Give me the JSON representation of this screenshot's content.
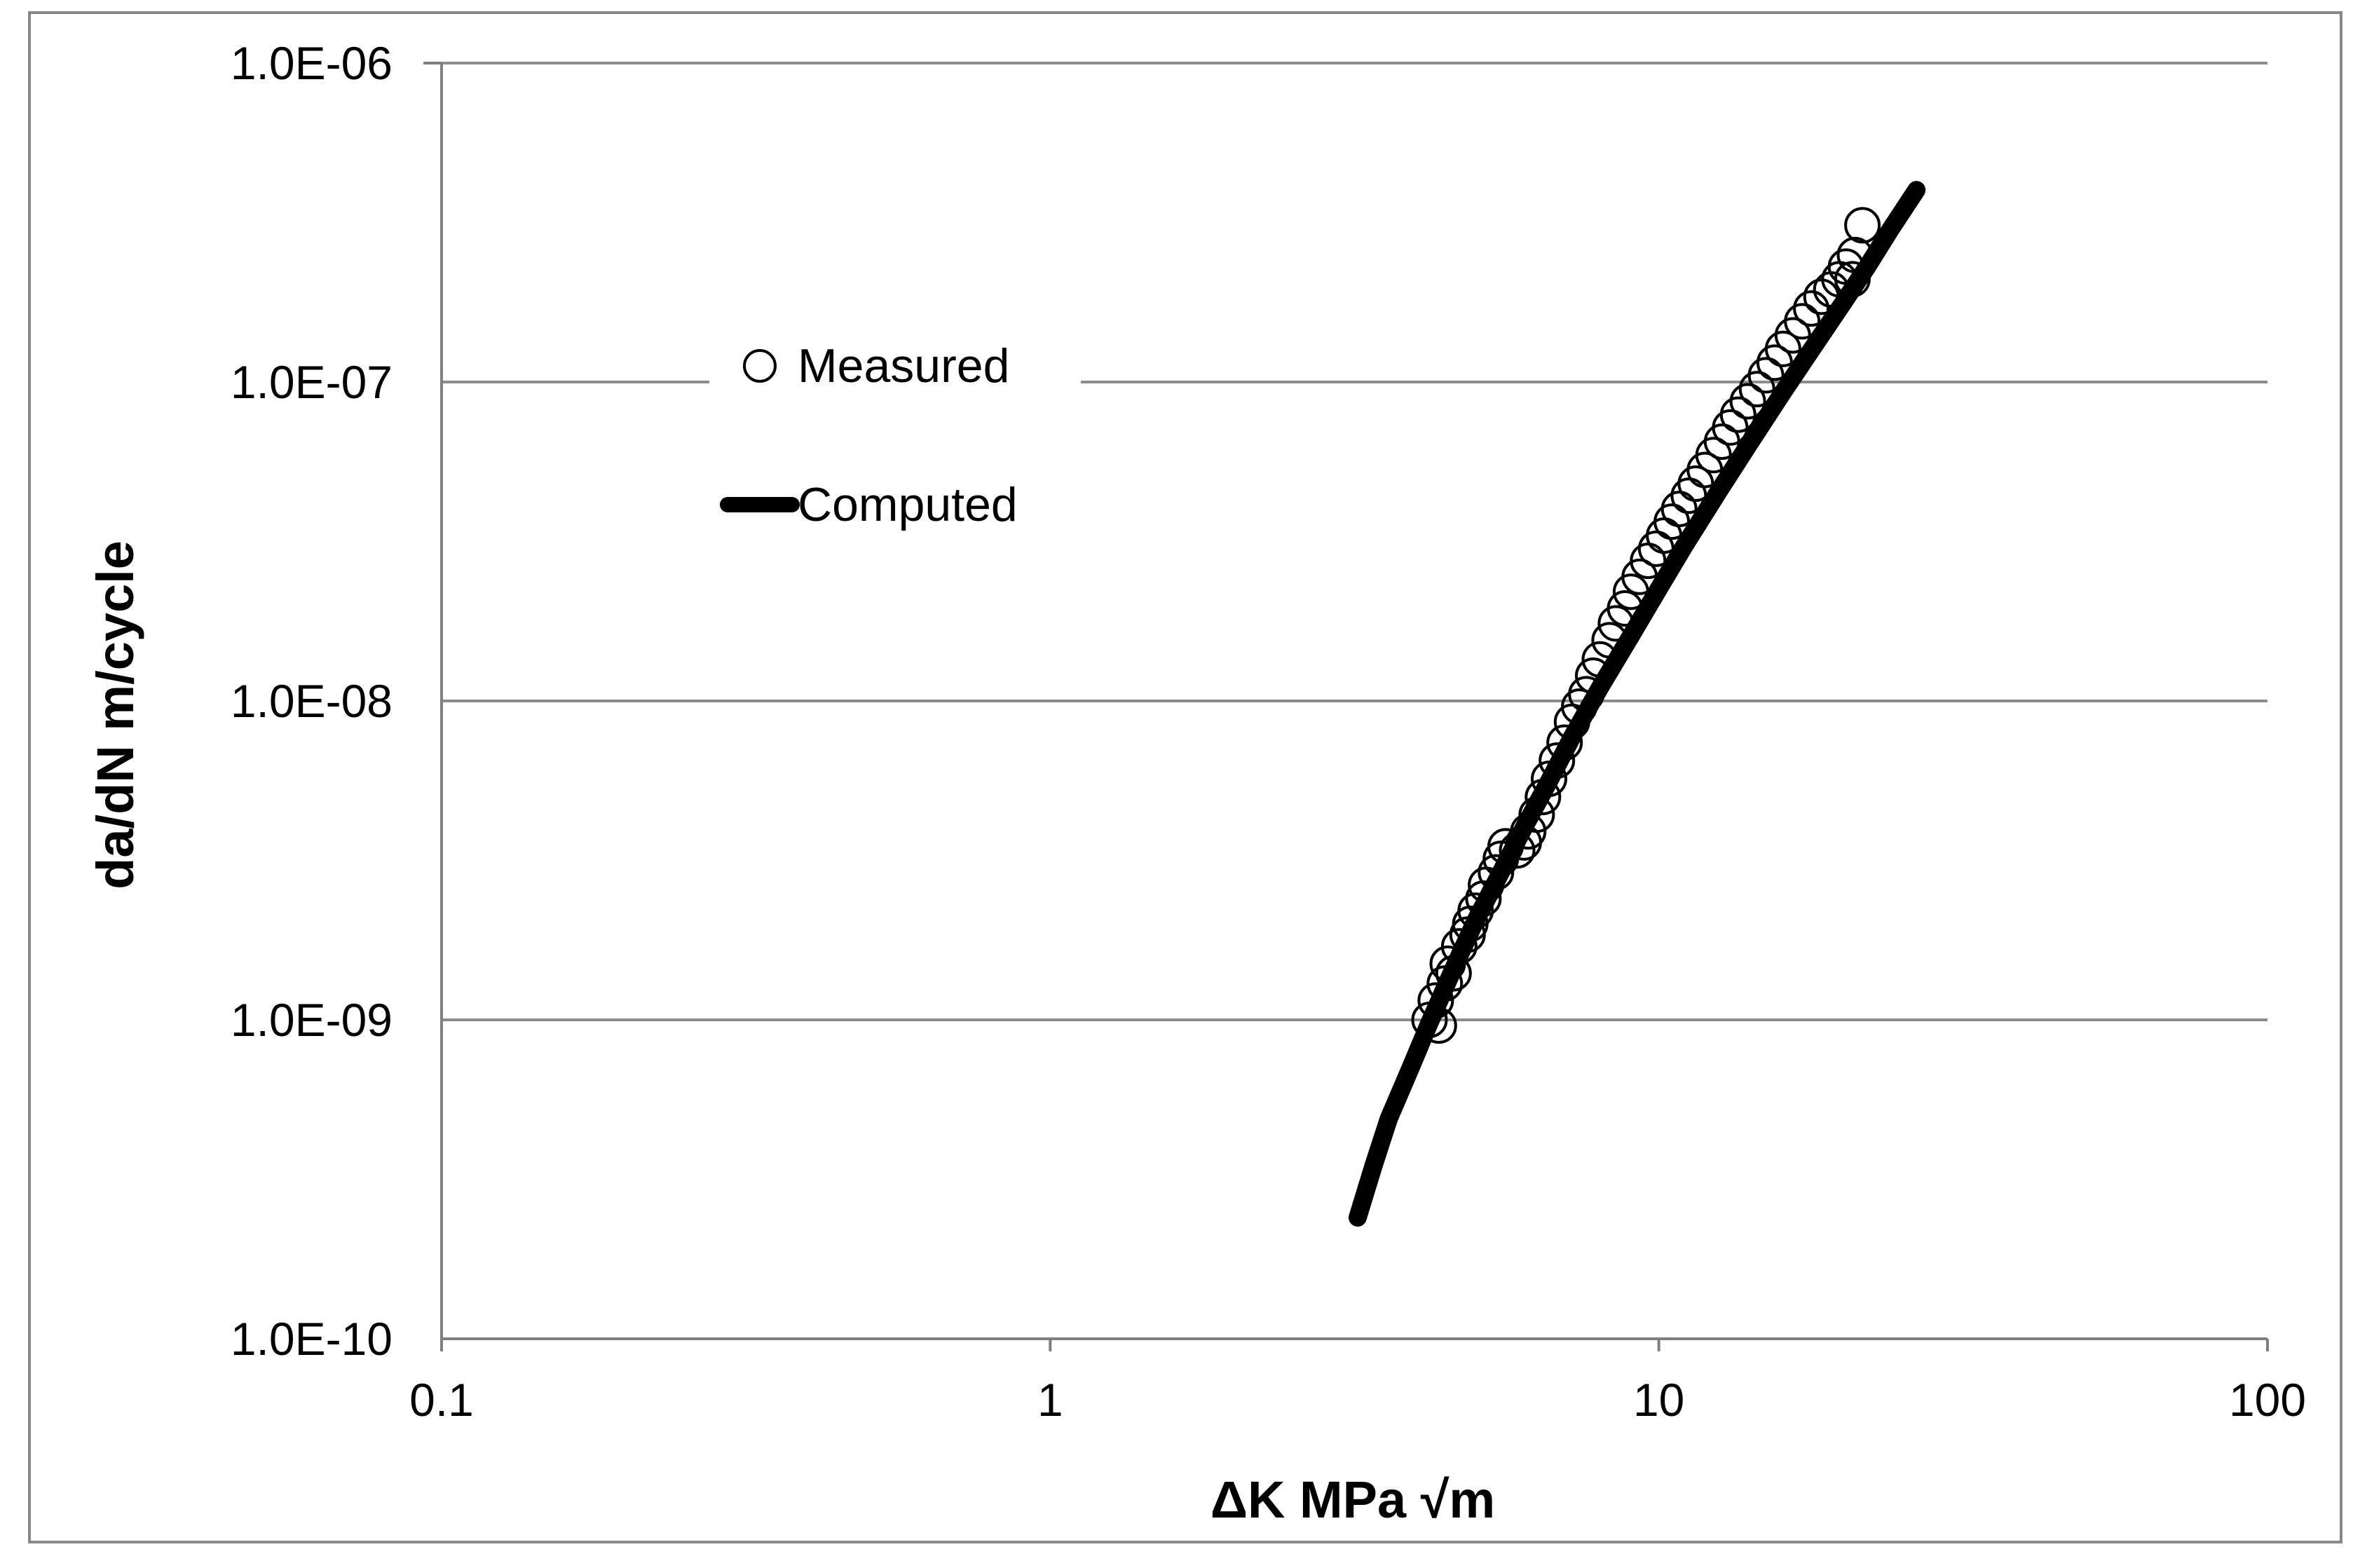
{
  "chart_data": {
    "type": "scatter",
    "x_scale": "log",
    "y_scale": "log",
    "xlabel": "ΔK MPa √m",
    "ylabel": "da/dN m/cycle",
    "xlim": [
      0.1,
      100
    ],
    "ylim": [
      1e-10,
      1e-06
    ],
    "x_ticks": [
      0.1,
      1,
      10,
      100
    ],
    "x_tick_labels": [
      "0.1",
      "1",
      "10",
      "100"
    ],
    "y_ticks": [
      1e-10,
      1e-09,
      1e-08,
      1e-07,
      1e-06
    ],
    "y_tick_labels": [
      "1.0E-10",
      "1.0E-09",
      "1.0E-08",
      "1.0E-07",
      "1.0E-06"
    ],
    "grid": "horizontal",
    "legend_position": "top-left",
    "legend": [
      {
        "label": "Measured",
        "marker": "open-circle"
      },
      {
        "label": "Computed",
        "marker": "thick-line"
      }
    ],
    "series": [
      {
        "name": "Measured",
        "kind": "scatter",
        "points": [
          [
            4.2,
            1e-09
          ],
          [
            4.35,
            9.6e-10
          ],
          [
            4.3,
            1.15e-09
          ],
          [
            4.45,
            1.3e-09
          ],
          [
            4.5,
            1.5e-09
          ],
          [
            4.6,
            1.4e-09
          ],
          [
            4.7,
            1.7e-09
          ],
          [
            4.85,
            1.85e-09
          ],
          [
            4.9,
            2e-09
          ],
          [
            5.0,
            2.2e-09
          ],
          [
            5.15,
            2.4e-09
          ],
          [
            5.2,
            2.65e-09
          ],
          [
            5.4,
            2.9e-09
          ],
          [
            5.5,
            3.2e-09
          ],
          [
            5.6,
            3.5e-09
          ],
          [
            5.85,
            3.4e-09
          ],
          [
            6.0,
            3.6e-09
          ],
          [
            6.1,
            3.9e-09
          ],
          [
            6.3,
            4.4e-09
          ],
          [
            6.45,
            5e-09
          ],
          [
            6.6,
            5.7e-09
          ],
          [
            6.8,
            6.5e-09
          ],
          [
            7.0,
            7.4e-09
          ],
          [
            7.2,
            8.6e-09
          ],
          [
            7.4,
            9.6e-09
          ],
          [
            7.6,
            1.05e-08
          ],
          [
            7.8,
            1.2e-08
          ],
          [
            8.0,
            1.35e-08
          ],
          [
            8.3,
            1.55e-08
          ],
          [
            8.5,
            1.75e-08
          ],
          [
            8.8,
            1.95e-08
          ],
          [
            9.0,
            2.2e-08
          ],
          [
            9.3,
            2.45e-08
          ],
          [
            9.6,
            2.75e-08
          ],
          [
            9.9,
            3e-08
          ],
          [
            10.2,
            3.3e-08
          ],
          [
            10.5,
            3.65e-08
          ],
          [
            10.8,
            4e-08
          ],
          [
            11.2,
            4.4e-08
          ],
          [
            11.5,
            4.8e-08
          ],
          [
            11.9,
            5.3e-08
          ],
          [
            12.3,
            5.9e-08
          ],
          [
            12.7,
            6.5e-08
          ],
          [
            13.1,
            7.2e-08
          ],
          [
            13.5,
            7.9e-08
          ],
          [
            14.0,
            8.7e-08
          ],
          [
            14.5,
            9.5e-08
          ],
          [
            15.0,
            1.05e-07
          ],
          [
            15.5,
            1.15e-07
          ],
          [
            16.0,
            1.27e-07
          ],
          [
            16.6,
            1.4e-07
          ],
          [
            17.2,
            1.55e-07
          ],
          [
            17.8,
            1.7e-07
          ],
          [
            18.5,
            1.85e-07
          ],
          [
            19.2,
            1.95e-07
          ],
          [
            19.8,
            2.1e-07
          ],
          [
            20.3,
            2.3e-07
          ],
          [
            20.8,
            2.1e-07
          ],
          [
            21.0,
            2.5e-07
          ],
          [
            21.6,
            3.1e-07
          ]
        ]
      },
      {
        "name": "Computed",
        "kind": "line",
        "points": [
          [
            3.2,
            2.4e-10
          ],
          [
            3.4,
            3.5e-10
          ],
          [
            3.6,
            4.9e-10
          ],
          [
            3.9,
            7e-10
          ],
          [
            4.2,
            9.8e-10
          ],
          [
            4.6,
            1.45e-09
          ],
          [
            5.0,
            2.05e-09
          ],
          [
            5.5,
            2.9e-09
          ],
          [
            6.0,
            4e-09
          ],
          [
            6.6,
            5.6e-09
          ],
          [
            7.2,
            7.7e-09
          ],
          [
            8.0,
            1.1e-08
          ],
          [
            9.0,
            1.6e-08
          ],
          [
            10.0,
            2.25e-08
          ],
          [
            11.0,
            3.05e-08
          ],
          [
            12.5,
            4.5e-08
          ],
          [
            14.0,
            6.3e-08
          ],
          [
            16.0,
            9.3e-08
          ],
          [
            18.0,
            1.3e-07
          ],
          [
            20.0,
            1.75e-07
          ],
          [
            22.0,
            2.3e-07
          ],
          [
            24.0,
            3e-07
          ],
          [
            26.5,
            4e-07
          ]
        ]
      }
    ]
  }
}
